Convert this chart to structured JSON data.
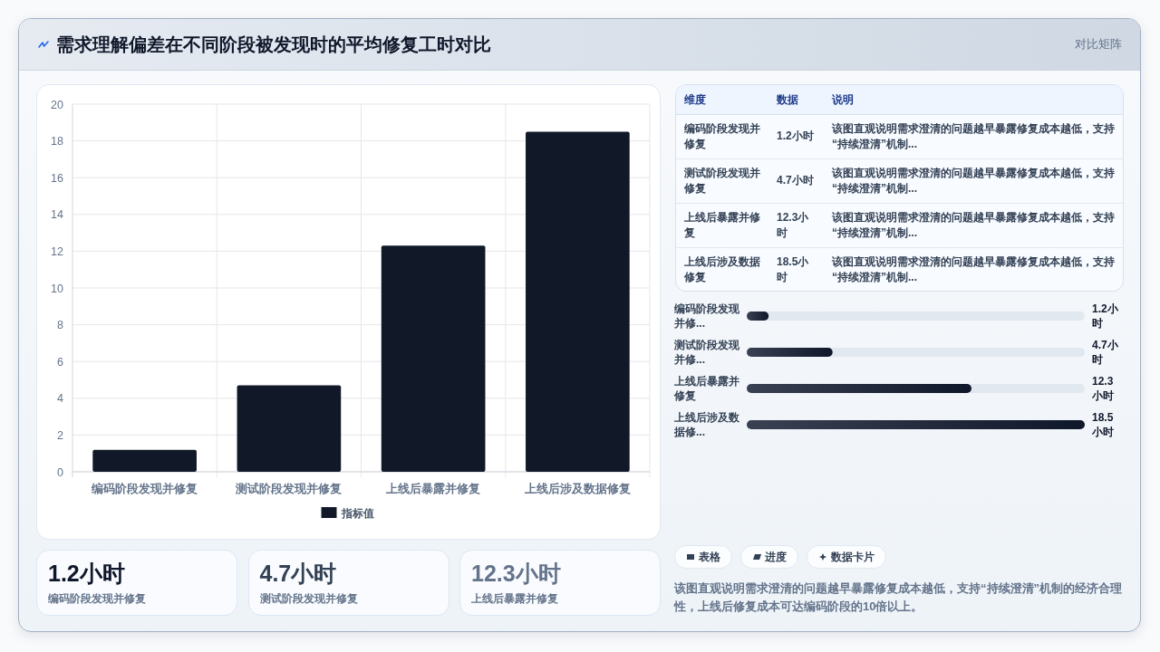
{
  "chart_data": [
    {
      "type": "bar",
      "title": "需求理解偏差在不同阶段被发现时的平均修复工时对比",
      "categories": [
        "编码阶段发现并修复",
        "测试阶段发现并修复",
        "上线后暴露并修复",
        "上线后涉及数据修复"
      ],
      "series": [
        {
          "name": "指标值",
          "color": "#111827",
          "values": [
            1.2,
            4.7,
            12.3,
            18.5
          ]
        }
      ],
      "ylim": [
        0,
        20
      ],
      "yticks": [
        0,
        2,
        4,
        6,
        8,
        10,
        12,
        14,
        16,
        18,
        20
      ],
      "grid": true,
      "legend": "bottom"
    },
    {
      "type": "other",
      "title": "对比矩阵",
      "categories": [
        "维度",
        "数据",
        "说明"
      ],
      "cell_labels": [
        [
          "编码阶段发现并修复",
          "1.2小时",
          "该图直观说明需求澄清的问题越早暴露修复成本越低，支持“持续澄清”机制..."
        ],
        [
          "测试阶段发现并修复",
          "4.7小时",
          "该图直观说明需求澄清的问题越早暴露修复成本越低，支持“持续澄清”机制..."
        ],
        [
          "上线后暴露并修复",
          "12.3小时",
          "该图直观说明需求澄清的问题越早暴露修复成本越低，支持“持续澄清”机制..."
        ],
        [
          "上线后涉及数据修复",
          "18.5小时",
          "该图直观说明需求澄清的问题越早暴露修复成本越低，支持“持续澄清”机制..."
        ]
      ]
    },
    {
      "type": "bar",
      "orientation": "horizontal",
      "categories": [
        "编码阶段发现并修...",
        "测试阶段发现并修...",
        "上线后暴露并修复",
        "上线后涉及数据修..."
      ],
      "values": [
        1.2,
        4.7,
        12.3,
        18.5
      ],
      "value_labels": [
        "1.2小时",
        "4.7小时",
        "12.3小时",
        "18.5小时"
      ],
      "color": "#0f172a"
    },
    {
      "type": "other",
      "categories": [
        "编码阶段发现并修复",
        "测试阶段发现并修复",
        "上线后暴露并修复"
      ],
      "value_labels": [
        "1.2小时",
        "4.7小时",
        "12.3小时"
      ]
    },
    {
      "type": "other",
      "categories": [
        "表格",
        "进度",
        "数据卡片"
      ],
      "annotations": [
        "该图直观说明需求澄清的问题越早暴露修复成本越低，支持“持续澄清”机制的经济合理性，上线后修复成本可达编码阶段的10倍以上。"
      ]
    }
  ]
}
